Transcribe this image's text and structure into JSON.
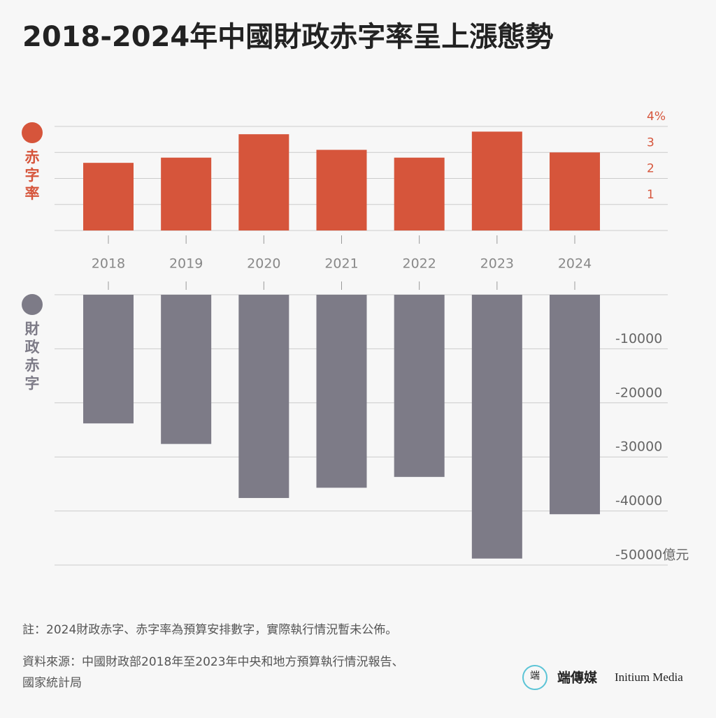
{
  "title": "2018-2024年中國財政赤字率呈上漲態勢",
  "chart_data": [
    {
      "type": "bar",
      "series_name": "赤字率",
      "color": "#d6553b",
      "categories": [
        "2018",
        "2019",
        "2020",
        "2021",
        "2022",
        "2023",
        "2024"
      ],
      "values": [
        2.6,
        2.8,
        3.7,
        3.1,
        2.8,
        3.8,
        3.0
      ],
      "ylim": [
        0,
        4
      ],
      "yticks": [
        1,
        2,
        3,
        {
          "value": 4,
          "label": "4%"
        }
      ],
      "grid": true
    },
    {
      "type": "bar",
      "series_name": "財政赤字",
      "color": "#7d7b87",
      "values": [
        -23800,
        -27600,
        -37600,
        -35700,
        -33700,
        -48800,
        -40600
      ],
      "ylim": [
        -50000,
        0
      ],
      "yticks": [
        -10000,
        -20000,
        -30000,
        -40000,
        {
          "value": -50000,
          "label": "-50000億元"
        }
      ],
      "grid": true
    }
  ],
  "note": "註：2024財政赤字、赤字率為預算安排數字，實際執行情況暫未公佈。",
  "source": [
    "資料來源：中國財政部2018年至2023年中央和地方預算執行情況報告、",
    "國家統計局"
  ],
  "logo": {
    "chinese": "端傳媒",
    "english": "Initium Media"
  }
}
